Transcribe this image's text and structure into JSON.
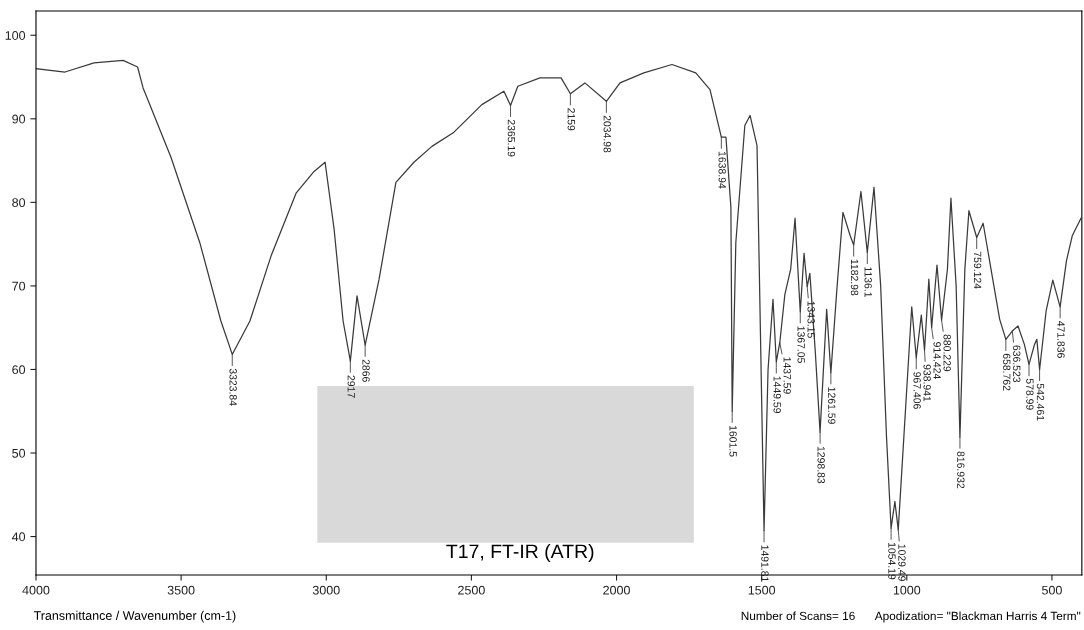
{
  "chart_data": {
    "type": "line",
    "xlabel": "Transmittance / Wavenumber (cm-1)",
    "xlim": [
      4000,
      397
    ],
    "ylim": [
      35.4,
      102.9
    ],
    "xticks": [
      4000,
      3500,
      3000,
      2500,
      2000,
      1500,
      1000,
      500
    ],
    "yticks": [
      40,
      50,
      60,
      70,
      80,
      90,
      100
    ],
    "grid": false,
    "legend": false,
    "marker": "none",
    "line_style": "solid",
    "series": [
      {
        "color": "#3a3a3a",
        "x": [
          4000,
          3900,
          3800,
          3700,
          3650,
          3631,
          3535,
          3435,
          3363,
          3323.84,
          3263,
          3190,
          3104,
          3042,
          3004,
          2973,
          2942,
          2917,
          2894,
          2866,
          2818,
          2760,
          2698,
          2636,
          2560,
          2464,
          2388,
          2365.19,
          2340,
          2264,
          2191,
          2159,
          2109,
          2034.98,
          1988,
          1906,
          1809,
          1727,
          1678,
          1638.94,
          1623,
          1606,
          1601.5,
          1589,
          1558,
          1540,
          1516,
          1491.81,
          1478,
          1461,
          1449.59,
          1437.59,
          1420,
          1400,
          1385,
          1367.05,
          1354,
          1343.15,
          1334,
          1315,
          1298.83,
          1276,
          1261.59,
          1240,
          1220,
          1195,
          1182.98,
          1158,
          1136.1,
          1113,
          1090,
          1070,
          1054.19,
          1041,
          1029.49,
          1010,
          983,
          967.406,
          950,
          938.941,
          924,
          914.424,
          896,
          880.229,
          860,
          848,
          830,
          816.932,
          800,
          786,
          759.124,
          737,
          700,
          680,
          658.762,
          636.523,
          617,
          595,
          578.99,
          560,
          552,
          542.461,
          520,
          497,
          471.836,
          450,
          430,
          400
        ],
        "values": [
          96.0,
          95.6,
          96.7,
          97.0,
          96.2,
          93.7,
          85.4,
          75.1,
          65.8,
          61.8,
          65.8,
          73.6,
          81.1,
          83.7,
          84.8,
          76.8,
          65.8,
          61.0,
          68.8,
          62.9,
          70.8,
          82.4,
          84.8,
          86.7,
          88.4,
          91.7,
          93.3,
          91.6,
          93.9,
          94.9,
          94.9,
          93.0,
          94.3,
          92.1,
          94.3,
          95.5,
          96.5,
          95.5,
          93.5,
          87.8,
          87.8,
          79.4,
          55.0,
          75.2,
          89.2,
          90.4,
          86.8,
          40.7,
          60.0,
          68.4,
          60.9,
          63.2,
          69.0,
          72.0,
          78.1,
          66.9,
          73.9,
          69.9,
          71.5,
          62.0,
          52.5,
          67.2,
          59.6,
          70.0,
          78.8,
          76.0,
          74.9,
          81.3,
          74.0,
          81.8,
          70.0,
          52.0,
          41.0,
          44.2,
          40.8,
          52.0,
          67.5,
          61.4,
          66.5,
          62.3,
          70.8,
          65.0,
          72.5,
          65.9,
          72.0,
          80.5,
          70.0,
          51.9,
          72.0,
          79.0,
          75.8,
          77.5,
          70.0,
          66.0,
          63.6,
          64.6,
          65.2,
          63.0,
          60.6,
          63.0,
          63.6,
          60.0,
          67.0,
          70.7,
          67.5,
          73.0,
          76.0,
          78.1
        ]
      }
    ],
    "annotations": [
      {
        "text": "3323.84",
        "x": 3323.84,
        "y": 61.8
      },
      {
        "text": "2917",
        "x": 2917,
        "y": 61.0
      },
      {
        "text": "2866",
        "x": 2866,
        "y": 62.9
      },
      {
        "text": "2365.19",
        "x": 2365.19,
        "y": 91.6
      },
      {
        "text": "2159",
        "x": 2159,
        "y": 93.0
      },
      {
        "text": "2034.98",
        "x": 2034.98,
        "y": 92.1
      },
      {
        "text": "1638.94",
        "x": 1638.94,
        "y": 87.8
      },
      {
        "text": "1601.5",
        "x": 1601.5,
        "y": 55.0
      },
      {
        "text": "1491.81",
        "x": 1491.81,
        "y": 40.7
      },
      {
        "text": "1449.59",
        "x": 1449.59,
        "y": 60.9
      },
      {
        "text": "1437.59",
        "x": 1437.59,
        "y": 63.2
      },
      {
        "text": "1367.05",
        "x": 1367.05,
        "y": 66.9
      },
      {
        "text": "1343.15",
        "x": 1343.15,
        "y": 69.9
      },
      {
        "text": "1298.83",
        "x": 1298.83,
        "y": 52.5
      },
      {
        "text": "1261.59",
        "x": 1261.59,
        "y": 59.6
      },
      {
        "text": "1182.98",
        "x": 1182.98,
        "y": 74.9
      },
      {
        "text": "1136.1",
        "x": 1136.1,
        "y": 74.0
      },
      {
        "text": "1054.19",
        "x": 1054.19,
        "y": 41.0
      },
      {
        "text": "1029.49",
        "x": 1029.49,
        "y": 40.8
      },
      {
        "text": "967.406",
        "x": 967.406,
        "y": 61.4
      },
      {
        "text": "938.941",
        "x": 938.941,
        "y": 62.3
      },
      {
        "text": "914.424",
        "x": 914.424,
        "y": 65.0
      },
      {
        "text": "880.229",
        "x": 880.229,
        "y": 65.9
      },
      {
        "text": "816.932",
        "x": 816.932,
        "y": 51.9
      },
      {
        "text": "759.124",
        "x": 759.124,
        "y": 75.8
      },
      {
        "text": "658.762",
        "x": 658.762,
        "y": 63.6
      },
      {
        "text": "636.523",
        "x": 636.523,
        "y": 64.6
      },
      {
        "text": "578.99",
        "x": 578.99,
        "y": 60.6
      },
      {
        "text": "542.461",
        "x": 542.461,
        "y": 60.0
      },
      {
        "text": "471.836",
        "x": 471.836,
        "y": 67.5
      },
      "T17, FT-IR (ATR)",
      "Number of Scans= 16",
      "Apodization= \"Blackman Harris 4 Term\""
    ]
  }
}
